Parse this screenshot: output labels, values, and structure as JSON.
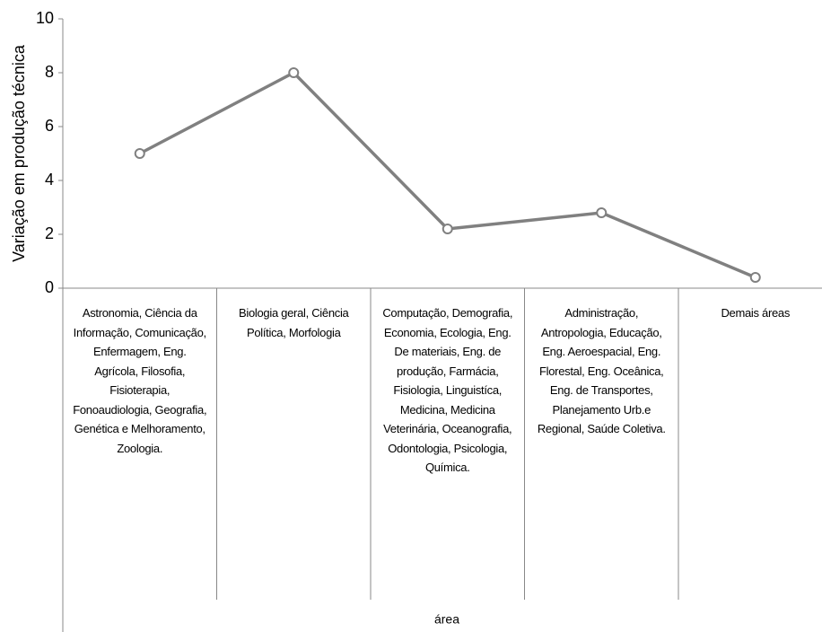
{
  "chart_data": {
    "type": "line",
    "ylabel": "Variação em produção técnica",
    "xlabel": "área",
    "categories": [
      "Astronomia, Ciência da Informação, Comunicação, Enfermagem, Eng. Agrícola, Filosofia, Fisioterapia, Fonoaudiologia, Geografia, Genética e Melhoramento, Zoologia.",
      "Biologia geral, Ciência Política, Morfologia",
      "Computação, Demografia, Economia, Ecologia, Eng. De materiais, Eng. de produção, Farmácia, Fisiologia, Linguistíca, Medicina, Medicina Veterinária, Oceanografia, Odontologia, Psicologia, Química.",
      "Administração, Antropologia, Educação, Eng. Aeroespacial, Eng. Florestal, Eng. Oceânica, Eng. de Transportes, Planejamento Urb.e Regional, Saúde Coletiva.",
      "Demais áreas"
    ],
    "values": [
      5,
      8,
      2.2,
      2.8,
      0.4
    ],
    "color": "#808080",
    "ylim": [
      0,
      10
    ],
    "yticks": [
      0,
      2,
      4,
      6,
      8,
      10
    ],
    "grid": false
  }
}
